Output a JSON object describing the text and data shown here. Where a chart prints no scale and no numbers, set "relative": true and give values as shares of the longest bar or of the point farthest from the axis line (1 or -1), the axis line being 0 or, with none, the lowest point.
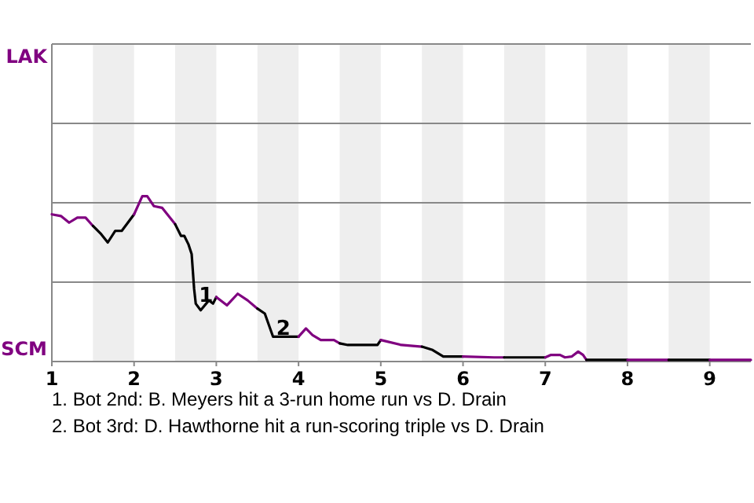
{
  "chart_data": {
    "type": "line",
    "relative": true,
    "xlim": [
      1,
      9.5
    ],
    "xticks": [
      1,
      2,
      3,
      4,
      5,
      6,
      7,
      8,
      9
    ],
    "marker": "none",
    "line_style": "solid",
    "ref_lines": [
      {
        "axis": "y",
        "value": 0.48,
        "color": "#888888"
      },
      {
        "axis": "y",
        "value": 0.96,
        "color": "#888888"
      },
      {
        "axis": "y",
        "value": 1.44,
        "color": "#888888"
      },
      {
        "axis": "y",
        "value": 1.92,
        "color": "#888888"
      }
    ],
    "bands": [
      {
        "axis": "x",
        "from": 1.5,
        "to": 2,
        "color": "#eeeeee"
      },
      {
        "axis": "x",
        "from": 2.5,
        "to": 3,
        "color": "#eeeeee"
      },
      {
        "axis": "x",
        "from": 3.5,
        "to": 4,
        "color": "#eeeeee"
      },
      {
        "axis": "x",
        "from": 4.5,
        "to": 5,
        "color": "#eeeeee"
      },
      {
        "axis": "x",
        "from": 5.5,
        "to": 6,
        "color": "#eeeeee"
      },
      {
        "axis": "x",
        "from": 6.5,
        "to": 7,
        "color": "#eeeeee"
      },
      {
        "axis": "x",
        "from": 7.5,
        "to": 8,
        "color": "#eeeeee"
      },
      {
        "axis": "x",
        "from": 8.5,
        "to": 9,
        "color": "#eeeeee"
      }
    ],
    "series": [
      {
        "color": "#800080",
        "x": [
          1,
          1.11,
          1.21,
          1.31,
          1.41,
          1.5
        ],
        "values": [
          0.89,
          0.88,
          0.84,
          0.87,
          0.87,
          0.82
        ]
      },
      {
        "color": "#000000",
        "x": [
          1.5,
          1.6,
          1.68,
          1.77,
          1.85,
          2
        ],
        "values": [
          0.82,
          0.77,
          0.72,
          0.79,
          0.79,
          0.89
        ]
      },
      {
        "color": "#800080",
        "x": [
          2,
          2.1,
          2.16,
          2.24,
          2.34,
          2.42,
          2.5
        ],
        "values": [
          0.89,
          1,
          1,
          0.94,
          0.93,
          0.88,
          0.83
        ]
      },
      {
        "color": "#000000",
        "x": [
          2.5,
          2.57,
          2.61,
          2.66,
          2.7,
          2.73,
          2.75,
          2.81,
          2.91,
          2.96,
          3
        ],
        "values": [
          0.83,
          0.76,
          0.76,
          0.71,
          0.65,
          0.44,
          0.35,
          0.31,
          0.37,
          0.35,
          0.39
        ]
      },
      {
        "color": "#800080",
        "x": [
          3,
          3.13,
          3.26,
          3.38,
          3.5
        ],
        "values": [
          0.39,
          0.34,
          0.41,
          0.37,
          0.32
        ]
      },
      {
        "color": "#000000",
        "x": [
          3.5,
          3.59,
          3.69,
          3.81,
          4
        ],
        "values": [
          0.32,
          0.29,
          0.15,
          0.15,
          0.15
        ]
      },
      {
        "color": "#800080",
        "x": [
          4,
          4.09,
          4.17,
          4.27,
          4.43,
          4.5
        ],
        "values": [
          0.15,
          0.2,
          0.16,
          0.13,
          0.13,
          0.11
        ]
      },
      {
        "color": "#000000",
        "x": [
          4.5,
          4.6,
          4.71,
          4.82,
          4.91,
          4.96,
          5
        ],
        "values": [
          0.11,
          0.1,
          0.1,
          0.1,
          0.1,
          0.1,
          0.13
        ]
      },
      {
        "color": "#800080",
        "x": [
          5,
          5.25,
          5.5
        ],
        "values": [
          0.13,
          0.1,
          0.09
        ]
      },
      {
        "color": "#000000",
        "x": [
          5.5,
          5.63,
          5.76,
          6
        ],
        "values": [
          0.09,
          0.07,
          0.03,
          0.03
        ]
      },
      {
        "color": "#800080",
        "x": [
          6,
          6.38,
          6.5
        ],
        "values": [
          0.03,
          0.025,
          0.025
        ]
      },
      {
        "color": "#000000",
        "x": [
          6.5,
          7
        ],
        "values": [
          0.025,
          0.025
        ]
      },
      {
        "color": "#800080",
        "x": [
          7,
          7.07,
          7.18,
          7.24,
          7.32,
          7.4,
          7.46,
          7.5
        ],
        "values": [
          0.025,
          0.04,
          0.04,
          0.025,
          0.03,
          0.06,
          0.04,
          0.01
        ]
      },
      {
        "color": "#000000",
        "x": [
          7.5,
          8
        ],
        "values": [
          0.01,
          0.01
        ]
      },
      {
        "color": "#800080",
        "x": [
          8,
          8.5
        ],
        "values": [
          0.01,
          0.01
        ]
      },
      {
        "color": "#000000",
        "x": [
          8.5,
          9
        ],
        "values": [
          0.01,
          0.01
        ]
      },
      {
        "color": "#800080",
        "x": [
          9,
          9.5
        ],
        "values": [
          0.01,
          0.01
        ]
      }
    ],
    "annotations": [
      "LAK",
      "SCM",
      {
        "text": "1",
        "x": 2.75,
        "y": 0.35
      },
      {
        "text": "2",
        "x": 3.69,
        "y": 0.15
      },
      "1. Bot 2nd: B. Meyers hit a 3-run home run vs D. Drain",
      "2. Bot 3rd: D. Hawthorne hit a run-scoring triple vs D. Drain"
    ]
  }
}
